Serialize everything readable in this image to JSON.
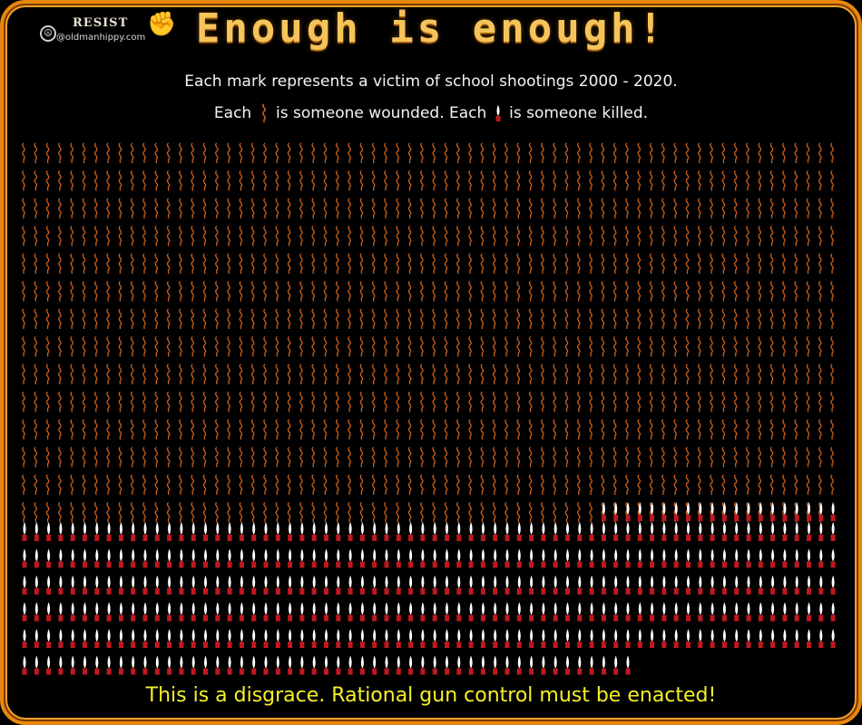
{
  "brand": {
    "resist_label": "RESIST",
    "handle": "@oldmanhippy.com",
    "peace_icon": "peace-sign-icon",
    "fist_icon": "raised-fist-icon"
  },
  "title": "Enough is enough!",
  "subtitle_line1": "Each mark represents a victim of school shootings 2000 - 2020.",
  "legend": {
    "prefix_wounded": "Each",
    "wounded_text": "is someone wounded.",
    "prefix_killed": "Each",
    "killed_text": "is someone killed.",
    "wounded_icon": "blood-squiggle-icon",
    "killed_icon": "candle-icon"
  },
  "marks": {
    "wounded_full_rows": 13,
    "wounded_last_row_count": 70,
    "killed_rows": 6,
    "killed_first_row_count": 20,
    "killed_last_row_count": 70
  },
  "colors": {
    "frame": "#e8870e",
    "wounded_mark": "#c8601a",
    "killed_flame": "#ffffff",
    "killed_base": "#c0181e",
    "footer_text": "#f6f02a",
    "title": "#f5c45a"
  },
  "footer": "This is a disgrace. Rational gun control must be enacted!"
}
